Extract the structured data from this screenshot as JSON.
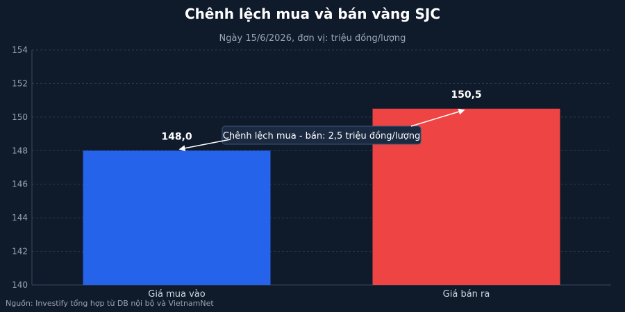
{
  "title": "Chênh lệch mua và bán vàng SJC",
  "subtitle": "Ngày 15/6/2026, đơn vị: triệu đồng/lượng",
  "source": "Nguồn: Investify tổng hợp từ DB nội bộ và VietnamNet",
  "colors": {
    "background": "#0f1a2b",
    "buy": "#2563eb",
    "sell": "#ef4444",
    "grid": "#2b3a52",
    "text": "#cfd6e0",
    "annotation_bg": "#1b2a40",
    "annotation_border": "#3b5578"
  },
  "chart_data": {
    "type": "bar",
    "categories": [
      "Giá mua vào",
      "Giá bán ra"
    ],
    "values": [
      148.0,
      150.5
    ],
    "value_labels": [
      "148,0",
      "150,5"
    ],
    "bar_colors": [
      "#2563eb",
      "#ef4444"
    ],
    "ylim": [
      140,
      154
    ],
    "yticks": [
      140,
      142,
      144,
      146,
      148,
      150,
      152,
      154
    ],
    "grid": true,
    "annotation": {
      "text": "Chênh lệch mua - bán: 2,5 triệu đồng/lượng",
      "spread": 2.5
    }
  }
}
